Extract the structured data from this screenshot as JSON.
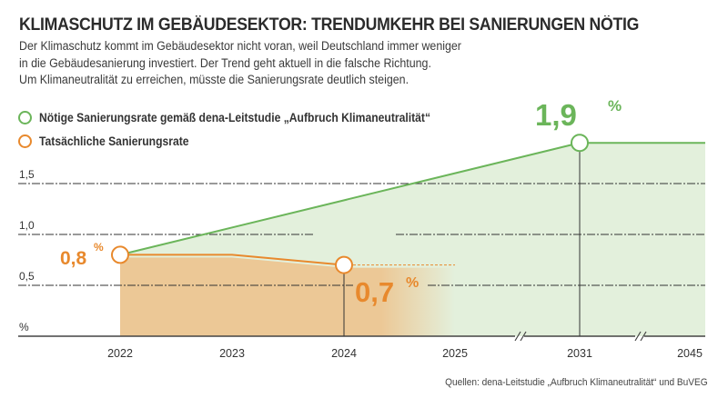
{
  "title": "KLIMASCHUTZ IM GEBÄUDESEKTOR: TRENDUMKEHR BEI SANIERUNGEN NÖTIG",
  "subtitle_lines": [
    "Der Klimaschutz kommt im Gebäudesektor nicht voran, weil Deutschland immer weniger",
    "in die Gebäudesanierung investiert. Der Trend geht aktuell in die falsche Richtung.",
    "Um Klimaneutralität zu erreichen, müsste die Sanierungsrate deutlich steigen."
  ],
  "source": "Quellen: dena-Leitstudie „Aufbruch Klimaneutralität“ und BuVEG",
  "colors": {
    "green": "#6bb55a",
    "green_fill": "#e3f0dc",
    "orange": "#e8892d",
    "orange_fill": "#ecc896",
    "grid": "#333333"
  },
  "chart_data": {
    "type": "line",
    "categories": [
      "2022",
      "2023",
      "2024",
      "2025",
      "2031",
      "2045"
    ],
    "axis_breaks": [
      "2025-2031",
      "2031-2045"
    ],
    "ylabel": "%",
    "yticks": [
      "%",
      "0,5",
      "1,0",
      "1,5"
    ],
    "ylim": [
      0,
      2.0
    ],
    "grid": true,
    "legend_position": "top-left",
    "series": [
      {
        "name": "Nötige Sanierungsrate gemäß dena-Leitstudie „Aufbruch Klimaneutralität“",
        "color": "#6bb55a",
        "points": [
          {
            "x": "2022",
            "y": 0.8
          },
          {
            "x": "2031",
            "y": 1.9
          },
          {
            "x": "2045",
            "y": 1.9
          }
        ]
      },
      {
        "name": "Tatsächliche Sanierungsrate",
        "color": "#e8892d",
        "points": [
          {
            "x": "2022",
            "y": 0.8
          },
          {
            "x": "2023",
            "y": 0.8
          },
          {
            "x": "2024",
            "y": 0.7
          }
        ],
        "projection": [
          {
            "x": "2024",
            "y": 0.7
          },
          {
            "x": "2025",
            "y": 0.7
          }
        ]
      }
    ],
    "annotations": [
      {
        "x": "2022",
        "value": "0,8",
        "unit": "%",
        "color": "#e8892d"
      },
      {
        "x": "2024",
        "value": "0,7",
        "unit": "%",
        "color": "#e8892d"
      },
      {
        "x": "2031",
        "value": "1,9",
        "unit": "%",
        "color": "#6bb55a"
      }
    ]
  }
}
